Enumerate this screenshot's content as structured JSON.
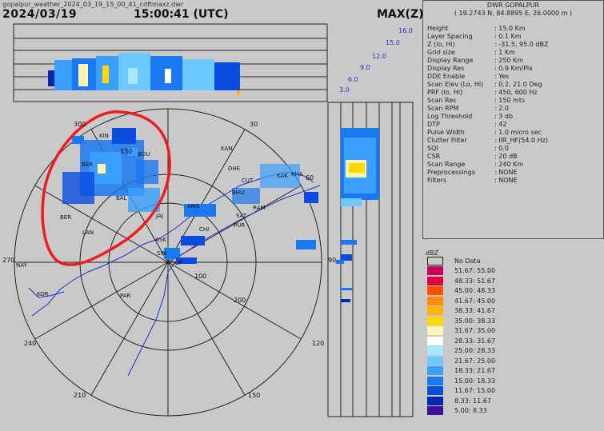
{
  "header": {
    "filename": "gopalpur_weather_2024_03_19_15_00_41_cdftmaxz.dwr",
    "date": "2024/03/19",
    "time": "15:00:41 (UTC)",
    "product": "MAX(Z)"
  },
  "station": {
    "name": "DWR GOPALPUR",
    "coords": "( 19.2743 N, 84.8895 E, 26.0000 m )"
  },
  "params": [
    {
      "label": "Height",
      "value": ": 15.0 Km"
    },
    {
      "label": "Layer Spacing",
      "value": ": 0.1 Km"
    },
    {
      "label": "Z (lo, Hi)",
      "value": ": -31.5, 95.0 dBZ"
    },
    {
      "label": "Grid size",
      "value": ": 1 Km"
    },
    {
      "label": "Display Range",
      "value": ": 250 Km"
    },
    {
      "label": "Display Res",
      "value": ": 0.9 Km/Pix"
    },
    {
      "label": "DDE Enable",
      "value": ": Yes"
    },
    {
      "label": "Scan Elev (Lo, Hi)",
      "value": ": 0.2, 21.0 Deg"
    },
    {
      "label": "PRF (lo, Hi)",
      "value": ": 450, 600 Hz"
    },
    {
      "label": "Scan Res",
      "value": ": 150 mts"
    },
    {
      "label": "Scan RPM",
      "value": ": 2.0"
    },
    {
      "label": "Log Threshold",
      "value": ": 3 db"
    },
    {
      "label": "DTP",
      "value": ": 42"
    },
    {
      "label": "Pulse Width",
      "value": ": 1.0 micro sec"
    },
    {
      "label": "Clutter Filter",
      "value": ": IIR_HF(54.0 Hz)"
    },
    {
      "label": "SQI",
      "value": ": 0.0"
    },
    {
      "label": "CSR",
      "value": ": 20 dB"
    },
    {
      "label": "Scan Range",
      "value": ": 240 Km"
    },
    {
      "label": "Preprocessings",
      "value": ": NONE"
    },
    {
      "label": "Filters",
      "value": ": NONE"
    }
  ],
  "legend": {
    "title": "dBZ",
    "no_data_label": "No Data",
    "items": [
      {
        "range": "51.67: 55.00",
        "color": "#c8005a"
      },
      {
        "range": "48.33: 51.67",
        "color": "#e0003a"
      },
      {
        "range": "45.00: 48.33",
        "color": "#ff5000"
      },
      {
        "range": "41.67: 45.00",
        "color": "#ff8c00"
      },
      {
        "range": "38.33: 41.67",
        "color": "#ffb400"
      },
      {
        "range": "35.00: 38.33",
        "color": "#ffd800"
      },
      {
        "range": "31.67: 35.00",
        "color": "#fff4b0"
      },
      {
        "range": "28.33: 31.67",
        "color": "#ffffff"
      },
      {
        "range": "25.00: 28.33",
        "color": "#a8e8ff"
      },
      {
        "range": "21.67: 25.00",
        "color": "#6cc8ff"
      },
      {
        "range": "18.33: 21.67",
        "color": "#3aa0ff"
      },
      {
        "range": "15.00: 18.33",
        "color": "#1a78f0"
      },
      {
        "range": "11.67: 15.00",
        "color": "#0a4ce0"
      },
      {
        "range": "8.33: 11.67",
        "color": "#0828b0"
      },
      {
        "range": "5.00: 8.33",
        "color": "#3c1098"
      }
    ]
  },
  "plot": {
    "range_ring_labels": [
      "100",
      "200"
    ],
    "azimuth_labels": [
      "300",
      "330",
      "30",
      "60",
      "90",
      "120",
      "150",
      "210",
      "240",
      "270"
    ],
    "top_height_labels": [
      "16.0",
      "15.0",
      "12.0",
      "9.0",
      "6.0",
      "3.0"
    ],
    "places": [
      "BER",
      "BOU",
      "KAN",
      "KIN",
      "DHE",
      "CUT",
      "BHU",
      "KHA",
      "BAL",
      "JAJ",
      "PUR",
      "SAT",
      "SIM",
      "ANG",
      "RAM",
      "KAK",
      "CHI",
      "ASK",
      "NAY",
      "KOR",
      "PAR",
      "BER",
      "LAN",
      "GOP"
    ]
  },
  "colors": {
    "background": "#c9c9c9",
    "rings": "#222222",
    "coast": "#2030d0",
    "highlight": "#ee1c1c"
  }
}
